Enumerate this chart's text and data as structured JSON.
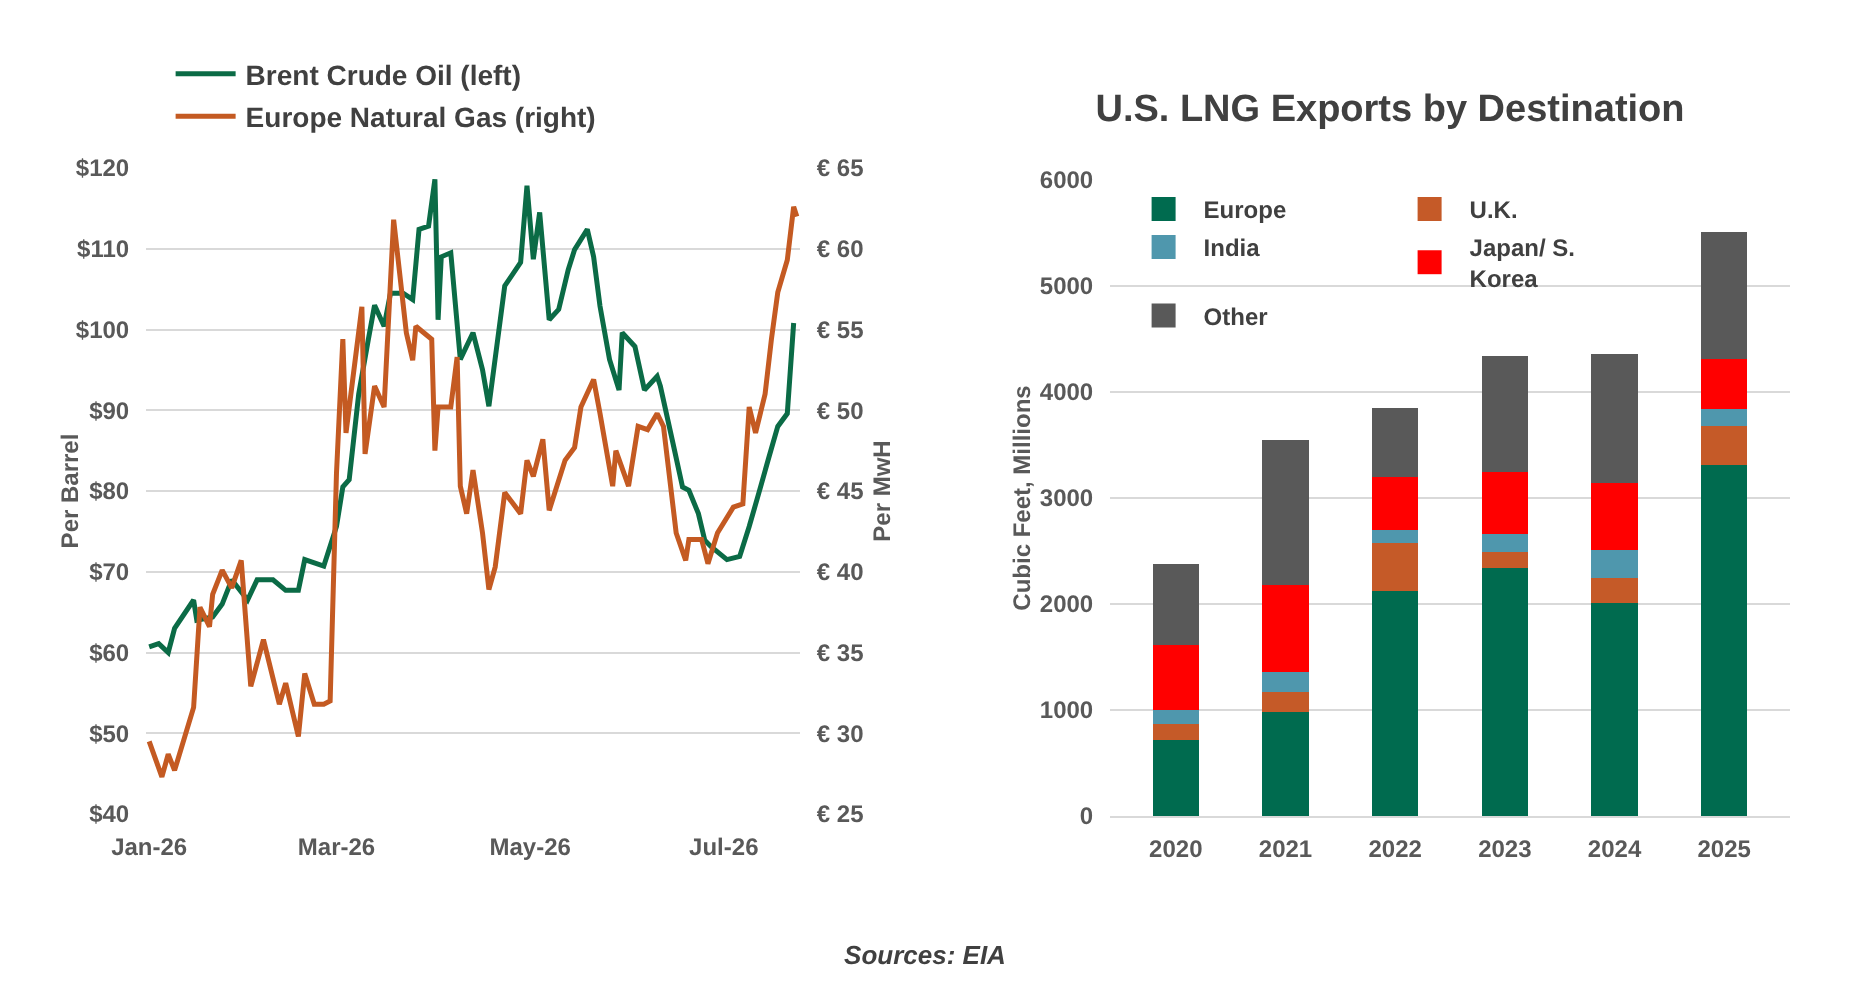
{
  "chart_data": [
    {
      "type": "line",
      "ylabel": "Per Barrel",
      "y2label": "Per MwH",
      "legend": "top",
      "grid": "y",
      "xlim": [
        "2025-12-31",
        "2026-07-25"
      ],
      "xticks": [
        {
          "value": "2026-01-01",
          "label": "Jan-26"
        },
        {
          "value": "2026-03-01",
          "label": "Mar-26"
        },
        {
          "value": "2026-05-01",
          "label": "May-26"
        },
        {
          "value": "2026-07-01",
          "label": "Jul-26"
        }
      ],
      "ylim": [
        40,
        120
      ],
      "yticks": [
        {
          "value": 40,
          "label": "$40"
        },
        {
          "value": 50,
          "label": "$50"
        },
        {
          "value": 60,
          "label": "$60"
        },
        {
          "value": 70,
          "label": "$70"
        },
        {
          "value": 80,
          "label": "$80"
        },
        {
          "value": 90,
          "label": "$90"
        },
        {
          "value": 100,
          "label": "$100"
        },
        {
          "value": 110,
          "label": "$110"
        },
        {
          "value": 120,
          "label": "$120"
        }
      ],
      "y2lim": [
        25,
        65
      ],
      "y2ticks": [
        {
          "value": 25,
          "label": "€ 25"
        },
        {
          "value": 30,
          "label": "€ 30"
        },
        {
          "value": 35,
          "label": "€ 35"
        },
        {
          "value": 40,
          "label": "€ 40"
        },
        {
          "value": 45,
          "label": "€ 45"
        },
        {
          "value": 50,
          "label": "€ 50"
        },
        {
          "value": 55,
          "label": "€ 55"
        },
        {
          "value": 60,
          "label": "€ 60"
        },
        {
          "value": 65,
          "label": "€ 65"
        }
      ],
      "series": [
        {
          "name": "Brent Crude Oil (left)",
          "color": "#0b6b46",
          "x": [
            "2026-01-01",
            "2026-01-04",
            "2026-01-07",
            "2026-01-09",
            "2026-01-15",
            "2026-01-16",
            "2026-01-21",
            "2026-01-24",
            "2026-01-27",
            "2026-02-01",
            "2026-02-04",
            "2026-02-09",
            "2026-02-13",
            "2026-02-17",
            "2026-02-19",
            "2026-02-25",
            "2026-03-01",
            "2026-03-03",
            "2026-03-05",
            "2026-03-08",
            "2026-03-11",
            "2026-03-13",
            "2026-03-16",
            "2026-03-18",
            "2026-03-22",
            "2026-03-25",
            "2026-03-27",
            "2026-03-30",
            "2026-04-01",
            "2026-04-02",
            "2026-04-03",
            "2026-04-06",
            "2026-04-09",
            "2026-04-13",
            "2026-04-16",
            "2026-04-18",
            "2026-04-23",
            "2026-04-28",
            "2026-04-30",
            "2026-05-02",
            "2026-05-04",
            "2026-05-07",
            "2026-05-10",
            "2026-05-13",
            "2026-05-15",
            "2026-05-19",
            "2026-05-21",
            "2026-05-23",
            "2026-05-26",
            "2026-05-29",
            "2026-05-30",
            "2026-06-03",
            "2026-06-06",
            "2026-06-10",
            "2026-06-11",
            "2026-06-15",
            "2026-06-18",
            "2026-06-20",
            "2026-06-23",
            "2026-06-25",
            "2026-06-27",
            "2026-07-02",
            "2026-07-06",
            "2026-07-09",
            "2026-07-12",
            "2026-07-15",
            "2026-07-18",
            "2026-07-21",
            "2026-07-23"
          ],
          "values": [
            60.7,
            61.1,
            60,
            63,
            66.5,
            64,
            64.4,
            66,
            69,
            66.5,
            69,
            69,
            67.7,
            67.7,
            71.5,
            70.7,
            75.6,
            80.5,
            81.4,
            92,
            98.7,
            103,
            100.4,
            104.5,
            104.5,
            103.7,
            112.4,
            112.8,
            118.6,
            101.2,
            109,
            109.5,
            96.3,
            99.6,
            95,
            90.5,
            105.4,
            108.3,
            117.8,
            108.7,
            114.5,
            101.2,
            102.5,
            107.4,
            109.9,
            112.4,
            109,
            102.9,
            96.3,
            92.5,
            99.6,
            97.9,
            92.5,
            94.2,
            93,
            85.9,
            80.5,
            80.1,
            77.2,
            73.9,
            73.1,
            71.5,
            71.9,
            75.6,
            79.7,
            83.9,
            88,
            89.6,
            100.8
          ]
        },
        {
          "name": "Europe Natural Gas (right)",
          "color": "#c45a22",
          "axis": "y2",
          "x": [
            "2026-01-01",
            "2026-01-05",
            "2026-01-07",
            "2026-01-09",
            "2026-01-15",
            "2026-01-17",
            "2026-01-20",
            "2026-01-21",
            "2026-01-24",
            "2026-01-27",
            "2026-01-30",
            "2026-02-02",
            "2026-02-06",
            "2026-02-11",
            "2026-02-13",
            "2026-02-17",
            "2026-02-19",
            "2026-02-22",
            "2026-02-25",
            "2026-02-27",
            "2026-03-01",
            "2026-03-03",
            "2026-03-04",
            "2026-03-09",
            "2026-03-10",
            "2026-03-13",
            "2026-03-16",
            "2026-03-19",
            "2026-03-23",
            "2026-03-25",
            "2026-03-26",
            "2026-03-31",
            "2026-04-01",
            "2026-04-02",
            "2026-04-06",
            "2026-04-08",
            "2026-04-09",
            "2026-04-11",
            "2026-04-13",
            "2026-04-16",
            "2026-04-18",
            "2026-04-20",
            "2026-04-23",
            "2026-04-28",
            "2026-04-30",
            "2026-05-02",
            "2026-05-05",
            "2026-05-07",
            "2026-05-12",
            "2026-05-15",
            "2026-05-17",
            "2026-05-21",
            "2026-05-23",
            "2026-05-27",
            "2026-05-28",
            "2026-06-01",
            "2026-06-04",
            "2026-06-07",
            "2026-06-10",
            "2026-06-12",
            "2026-06-16",
            "2026-06-19",
            "2026-06-20",
            "2026-06-24",
            "2026-06-26",
            "2026-06-29",
            "2026-07-04",
            "2026-07-07",
            "2026-07-09",
            "2026-07-11",
            "2026-07-14",
            "2026-07-16",
            "2026-07-18",
            "2026-07-21",
            "2026-07-23",
            "2026-07-24"
          ],
          "values": [
            29.5,
            27.3,
            28.7,
            27.7,
            31.6,
            37.8,
            36.6,
            38.6,
            40.1,
            39,
            40.7,
            32.9,
            35.8,
            31.8,
            33.1,
            29.8,
            33.7,
            31.8,
            31.8,
            32,
            46.1,
            54.4,
            48.6,
            56.4,
            47.3,
            51.5,
            50.2,
            61.8,
            54.8,
            53.1,
            55.2,
            54.4,
            47.5,
            50.2,
            50.2,
            53.3,
            45.3,
            43.6,
            46.3,
            42.4,
            38.9,
            40.3,
            44.9,
            43.6,
            46.9,
            45.9,
            48.2,
            43.8,
            46.9,
            47.7,
            50.2,
            51.9,
            49.8,
            45.3,
            47.5,
            45.3,
            49,
            48.8,
            49.8,
            49,
            42.4,
            40.7,
            42,
            42,
            40.5,
            42.4,
            44,
            44.2,
            50.2,
            48.6,
            51,
            54.4,
            57.3,
            59.3,
            62.6,
            62
          ]
        }
      ]
    },
    {
      "type": "bar",
      "title": "U.S. LNG Exports by Destination",
      "ylabel": "Cubic Feet, Millions",
      "stacked": true,
      "legend": "top left",
      "grid": "y",
      "categories": [
        "2020",
        "2021",
        "2022",
        "2023",
        "2024",
        "2025"
      ],
      "ylim": [
        0,
        6000
      ],
      "yticks": [
        0,
        1000,
        2000,
        3000,
        4000,
        5000,
        6000
      ],
      "series": [
        {
          "name": "Europe",
          "color": "#006b4f",
          "values": [
            720,
            980,
            2120,
            2340,
            2010,
            3310
          ]
        },
        {
          "name": "U.K.",
          "color": "#c55a28",
          "values": [
            150,
            190,
            460,
            150,
            240,
            370
          ]
        },
        {
          "name": "India",
          "color": "#4f97ad",
          "values": [
            130,
            190,
            120,
            170,
            260,
            160
          ]
        },
        {
          "name": "Japan/ S. Korea",
          "color": "#ff0000",
          "values": [
            610,
            820,
            500,
            590,
            630,
            470
          ]
        },
        {
          "name": "Other",
          "color": "#595959",
          "values": [
            770,
            1370,
            650,
            1090,
            1220,
            1200
          ]
        }
      ],
      "annotations": [
        "Sources: EIA"
      ]
    }
  ]
}
